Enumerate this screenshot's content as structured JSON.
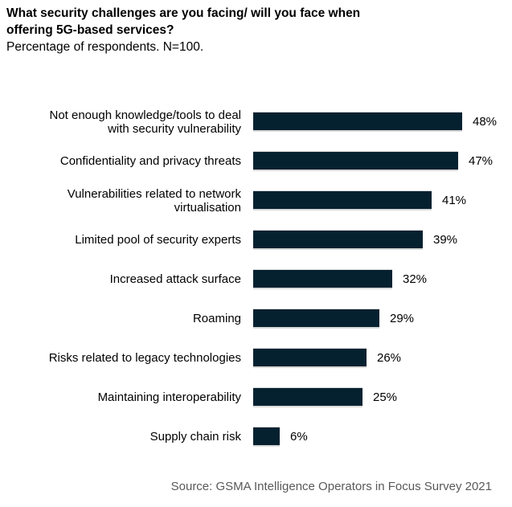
{
  "header": {
    "title_line1": "What security challenges are you facing/ will you face when",
    "title_line2": "offering 5G-based services?",
    "subtitle": "Percentage of respondents. N=100."
  },
  "chart_data": {
    "type": "bar",
    "orientation": "horizontal",
    "title": "What security challenges are you facing/ will you face when offering 5G-based services?",
    "subtitle": "Percentage of respondents. N=100.",
    "categories": [
      "Not enough knowledge/tools to deal with security vulnerability",
      "Confidentiality and privacy threats",
      "Vulnerabilities related to network virtualisation",
      "Limited pool of security experts",
      "Increased attack surface",
      "Roaming",
      "Risks related to legacy technologies",
      "Maintaining interoperability",
      "Supply chain risk"
    ],
    "values": [
      48,
      47,
      41,
      39,
      32,
      29,
      26,
      25,
      6
    ],
    "value_suffix": "%",
    "xlim": [
      0,
      100
    ],
    "grid": false,
    "legend": false,
    "data_labels": true,
    "source": "Source: GSMA Intelligence Operators in Focus Survey 2021"
  },
  "footer": {
    "source": "Source: GSMA Intelligence Operators in Focus Survey 2021"
  },
  "colors": {
    "bar": "#052130",
    "bar_edge": "#d9d9d9",
    "text": "#000000",
    "source_text": "#595959",
    "background": "#ffffff"
  }
}
